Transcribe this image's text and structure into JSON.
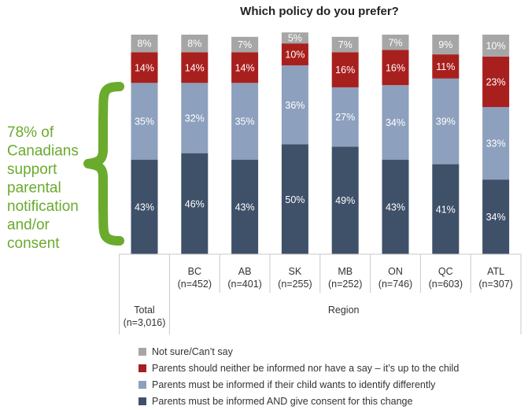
{
  "chart_data": {
    "type": "bar",
    "stacked": true,
    "percent": true,
    "title": "Which policy do you prefer?",
    "categories": [
      {
        "label": "Total",
        "n": "(n=3,016)"
      },
      {
        "label": "BC",
        "n": "(n=452)"
      },
      {
        "label": "AB",
        "n": "(n=401)"
      },
      {
        "label": "SK",
        "n": "(n=255)"
      },
      {
        "label": "MB",
        "n": "(n=252)"
      },
      {
        "label": "ON",
        "n": "(n=746)"
      },
      {
        "label": "QC",
        "n": "(n=603)"
      },
      {
        "label": "ATL",
        "n": "(n=307)"
      }
    ],
    "group_label": "Region",
    "series": [
      {
        "name": "Parents must be informed AND give consent for this change",
        "color": "#3f5069",
        "values": [
          43,
          46,
          43,
          50,
          49,
          43,
          41,
          34
        ]
      },
      {
        "name": "Parents must be informed if their child wants to identify differently",
        "color": "#8da0bd",
        "values": [
          35,
          32,
          35,
          36,
          27,
          34,
          39,
          33
        ]
      },
      {
        "name": "Parents should neither be informed nor have a say – it’s up to the child",
        "color": "#a8201e",
        "values": [
          14,
          14,
          14,
          10,
          16,
          16,
          11,
          23
        ]
      },
      {
        "name": "Not sure/Can’t say",
        "color": "#a6a6a6",
        "values": [
          8,
          8,
          7,
          5,
          7,
          7,
          9,
          10
        ]
      }
    ],
    "legend_order": [
      3,
      2,
      1,
      0
    ],
    "legend_position": "bottom",
    "ylim": [
      0,
      100
    ],
    "grid": false
  },
  "annotation": {
    "lines": [
      "78% of",
      "Canadians",
      "support",
      "parental",
      "notification",
      "and/or",
      "consent"
    ],
    "color": "#6aab2e"
  }
}
